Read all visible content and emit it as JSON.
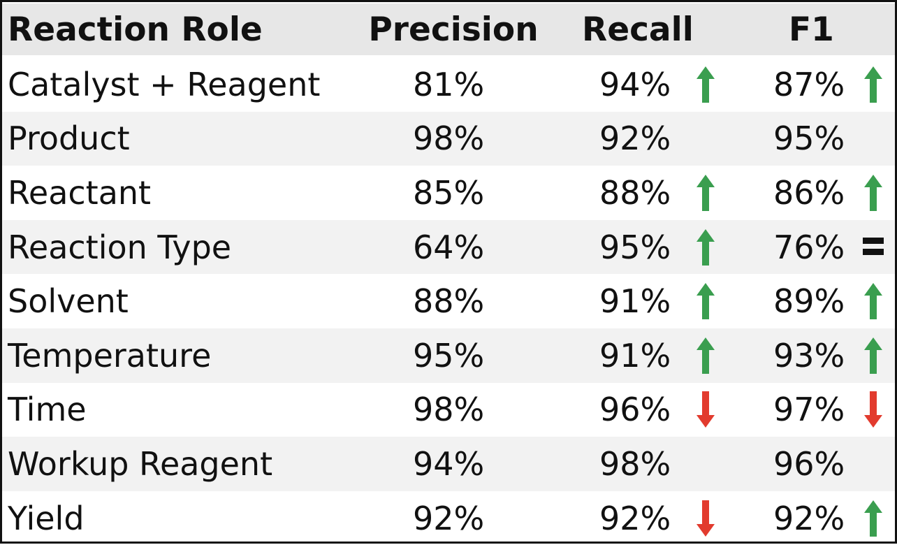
{
  "chart_data": {
    "type": "table",
    "columns": [
      "Reaction Role",
      "Precision",
      "Recall",
      "F1"
    ],
    "rows": [
      {
        "role": "Catalyst + Reagent",
        "precision": "81%",
        "recall": "94%",
        "recall_trend": "up",
        "f1": "87%",
        "f1_trend": "up"
      },
      {
        "role": "Product",
        "precision": "98%",
        "recall": "92%",
        "recall_trend": "none",
        "f1": "95%",
        "f1_trend": "none"
      },
      {
        "role": "Reactant",
        "precision": "85%",
        "recall": "88%",
        "recall_trend": "up",
        "f1": "86%",
        "f1_trend": "up"
      },
      {
        "role": "Reaction Type",
        "precision": "64%",
        "recall": "95%",
        "recall_trend": "up",
        "f1": "76%",
        "f1_trend": "equal"
      },
      {
        "role": "Solvent",
        "precision": "88%",
        "recall": "91%",
        "recall_trend": "up",
        "f1": "89%",
        "f1_trend": "up"
      },
      {
        "role": "Temperature",
        "precision": "95%",
        "recall": "91%",
        "recall_trend": "up",
        "f1": "93%",
        "f1_trend": "up"
      },
      {
        "role": "Time",
        "precision": "98%",
        "recall": "96%",
        "recall_trend": "down",
        "f1": "97%",
        "f1_trend": "down"
      },
      {
        "role": "Workup Reagent",
        "precision": "94%",
        "recall": "98%",
        "recall_trend": "none",
        "f1": "96%",
        "f1_trend": "none"
      },
      {
        "role": "Yield",
        "precision": "92%",
        "recall": "92%",
        "recall_trend": "down",
        "f1": "92%",
        "f1_trend": "up"
      }
    ]
  },
  "colors": {
    "up_arrow": "#3a9e4f",
    "down_arrow": "#e23b2e",
    "equal_sign": "#111111",
    "header_bg": "#e7e7e7",
    "shaded_row_bg": "#f2f2f2",
    "border": "#111111"
  }
}
